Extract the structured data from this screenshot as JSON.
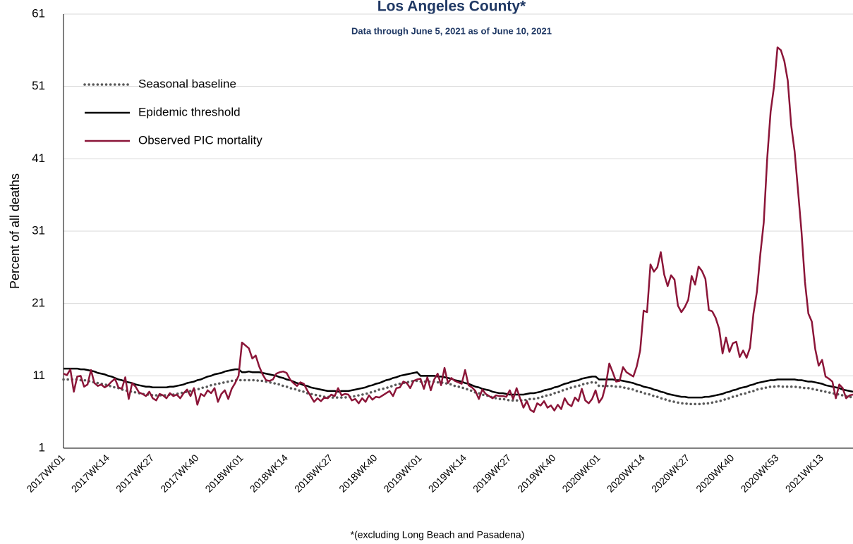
{
  "chart_data": {
    "type": "line",
    "title": "Los Angeles County*",
    "subtitle": "Data through June 5, 2021 as of June 10, 2021",
    "y_label": "Percent of all deaths",
    "footnote": "*(excluding Long Beach and Pasadena)",
    "ylim": [
      1,
      61
    ],
    "yticks": [
      1,
      11,
      21,
      31,
      41,
      51,
      61
    ],
    "grid": true,
    "categories": [
      "2017WK01",
      null,
      null,
      null,
      null,
      null,
      null,
      null,
      null,
      null,
      null,
      null,
      null,
      "2017WK14",
      null,
      null,
      null,
      null,
      null,
      null,
      null,
      null,
      null,
      null,
      null,
      null,
      "2017WK27",
      null,
      null,
      null,
      null,
      null,
      null,
      null,
      null,
      null,
      null,
      null,
      null,
      "2017WK40",
      null,
      null,
      null,
      null,
      null,
      null,
      null,
      null,
      null,
      null,
      null,
      null,
      "2018WK01",
      null,
      null,
      null,
      null,
      null,
      null,
      null,
      null,
      null,
      null,
      null,
      null,
      "2018WK14",
      null,
      null,
      null,
      null,
      null,
      null,
      null,
      null,
      null,
      null,
      null,
      null,
      "2018WK27",
      null,
      null,
      null,
      null,
      null,
      null,
      null,
      null,
      null,
      null,
      null,
      null,
      "2018WK40",
      null,
      null,
      null,
      null,
      null,
      null,
      null,
      null,
      null,
      null,
      null,
      null,
      "2019WK01",
      null,
      null,
      null,
      null,
      null,
      null,
      null,
      null,
      null,
      null,
      null,
      null,
      "2019WK14",
      null,
      null,
      null,
      null,
      null,
      null,
      null,
      null,
      null,
      null,
      null,
      null,
      "2019WK27",
      null,
      null,
      null,
      null,
      null,
      null,
      null,
      null,
      null,
      null,
      null,
      null,
      "2019WK40",
      null,
      null,
      null,
      null,
      null,
      null,
      null,
      null,
      null,
      null,
      null,
      null,
      "2020WK01",
      null,
      null,
      null,
      null,
      null,
      null,
      null,
      null,
      null,
      null,
      null,
      null,
      "2020WK14",
      null,
      null,
      null,
      null,
      null,
      null,
      null,
      null,
      null,
      null,
      null,
      null,
      "2020WK27",
      null,
      null,
      null,
      null,
      null,
      null,
      null,
      null,
      null,
      null,
      null,
      null,
      "2020WK40",
      null,
      null,
      null,
      null,
      null,
      null,
      null,
      null,
      null,
      null,
      null,
      null,
      "2020WK53",
      null,
      null,
      null,
      null,
      null,
      null,
      null,
      null,
      null,
      null,
      null,
      null,
      "2021WK13",
      null,
      null,
      null,
      null,
      null,
      null,
      null,
      null,
      null
    ],
    "series": [
      {
        "name": "Seasonal baseline",
        "color": "#595959",
        "style": "dotted",
        "values": [
          10.5,
          10.5,
          10.5,
          10.5,
          10.5,
          10.4,
          10.4,
          10.3,
          10.2,
          10.1,
          10.0,
          9.9,
          9.8,
          9.7,
          9.5,
          9.4,
          9.3,
          9.1,
          9.0,
          8.9,
          8.8,
          8.7,
          8.6,
          8.5,
          8.4,
          8.4,
          8.3,
          8.3,
          8.3,
          8.3,
          8.3,
          8.4,
          8.4,
          8.5,
          8.6,
          8.7,
          8.8,
          8.9,
          9.0,
          9.1,
          9.3,
          9.4,
          9.5,
          9.7,
          9.8,
          9.9,
          10.0,
          10.1,
          10.2,
          10.3,
          10.4,
          10.4,
          10.4,
          10.4,
          10.4,
          10.4,
          10.4,
          10.3,
          10.3,
          10.2,
          10.1,
          10.0,
          9.9,
          9.8,
          9.6,
          9.5,
          9.3,
          9.2,
          9.1,
          8.9,
          8.8,
          8.6,
          8.5,
          8.4,
          8.3,
          8.2,
          8.1,
          8.1,
          8.0,
          8.0,
          8.0,
          8.0,
          8.0,
          8.1,
          8.1,
          8.2,
          8.3,
          8.4,
          8.5,
          8.6,
          8.8,
          8.9,
          9.1,
          9.2,
          9.3,
          9.5,
          9.6,
          9.8,
          9.9,
          10.0,
          10.1,
          10.2,
          10.3,
          10.3,
          10.2,
          10.2,
          10.2,
          10.2,
          10.2,
          10.1,
          10.1,
          10.0,
          9.9,
          9.8,
          9.6,
          9.5,
          9.4,
          9.2,
          9.1,
          8.9,
          8.7,
          8.6,
          8.4,
          8.3,
          8.2,
          8.0,
          7.9,
          7.8,
          7.8,
          7.7,
          7.6,
          7.6,
          7.6,
          7.6,
          7.6,
          7.7,
          7.8,
          7.8,
          7.9,
          8.0,
          8.2,
          8.3,
          8.4,
          8.6,
          8.7,
          8.9,
          9.1,
          9.2,
          9.4,
          9.5,
          9.6,
          9.8,
          9.9,
          10.0,
          10.1,
          10.1,
          9.6,
          9.6,
          9.6,
          9.6,
          9.6,
          9.5,
          9.5,
          9.4,
          9.3,
          9.2,
          9.1,
          8.9,
          8.8,
          8.6,
          8.5,
          8.4,
          8.2,
          8.1,
          7.9,
          7.8,
          7.6,
          7.5,
          7.4,
          7.3,
          7.2,
          7.2,
          7.1,
          7.1,
          7.1,
          7.1,
          7.1,
          7.2,
          7.2,
          7.3,
          7.4,
          7.5,
          7.6,
          7.8,
          7.9,
          8.1,
          8.2,
          8.4,
          8.5,
          8.6,
          8.8,
          8.9,
          9.1,
          9.2,
          9.3,
          9.4,
          9.5,
          9.5,
          9.6,
          9.5,
          9.5,
          9.5,
          9.5,
          9.5,
          9.4,
          9.4,
          9.3,
          9.3,
          9.2,
          9.1,
          9.0,
          8.9,
          8.8,
          8.7,
          8.6,
          8.5,
          8.4,
          8.3,
          8.2,
          8.1,
          8.0
        ]
      },
      {
        "name": "Epidemic threshold",
        "color": "#000000",
        "style": "solid",
        "values": [
          12.0,
          12.0,
          12.0,
          12.0,
          12.0,
          11.9,
          11.9,
          11.8,
          11.7,
          11.6,
          11.4,
          11.3,
          11.2,
          11.0,
          10.9,
          10.7,
          10.5,
          10.4,
          10.2,
          10.1,
          10.0,
          9.8,
          9.7,
          9.6,
          9.5,
          9.5,
          9.4,
          9.4,
          9.4,
          9.4,
          9.4,
          9.5,
          9.5,
          9.6,
          9.7,
          9.8,
          10.0,
          10.1,
          10.2,
          10.4,
          10.5,
          10.7,
          10.9,
          11.0,
          11.2,
          11.3,
          11.4,
          11.6,
          11.7,
          11.8,
          11.9,
          11.9,
          11.5,
          11.5,
          11.6,
          11.5,
          11.5,
          11.5,
          11.4,
          11.3,
          11.2,
          11.1,
          11.0,
          10.8,
          10.7,
          10.5,
          10.4,
          10.2,
          10.0,
          9.9,
          9.7,
          9.6,
          9.4,
          9.3,
          9.2,
          9.1,
          9.0,
          8.9,
          8.9,
          8.9,
          8.8,
          8.9,
          8.9,
          8.9,
          9.0,
          9.1,
          9.2,
          9.3,
          9.4,
          9.6,
          9.7,
          9.9,
          10.0,
          10.2,
          10.4,
          10.5,
          10.7,
          10.8,
          11.0,
          11.1,
          11.2,
          11.3,
          11.4,
          11.5,
          11.0,
          11.0,
          11.0,
          11.0,
          11.0,
          10.9,
          10.9,
          10.8,
          10.7,
          10.6,
          10.4,
          10.3,
          10.2,
          10.0,
          9.9,
          9.7,
          9.5,
          9.4,
          9.2,
          9.1,
          9.0,
          8.8,
          8.7,
          8.6,
          8.6,
          8.5,
          8.4,
          8.4,
          8.4,
          8.4,
          8.4,
          8.5,
          8.6,
          8.6,
          8.7,
          8.8,
          9.0,
          9.1,
          9.2,
          9.4,
          9.5,
          9.7,
          9.9,
          10.0,
          10.2,
          10.3,
          10.4,
          10.6,
          10.7,
          10.8,
          10.9,
          10.9,
          10.5,
          10.5,
          10.5,
          10.5,
          10.5,
          10.4,
          10.4,
          10.3,
          10.2,
          10.1,
          10.0,
          9.8,
          9.7,
          9.5,
          9.4,
          9.3,
          9.1,
          9.0,
          8.8,
          8.7,
          8.5,
          8.4,
          8.3,
          8.2,
          8.1,
          8.1,
          8.0,
          8.0,
          8.0,
          8.0,
          8.0,
          8.1,
          8.1,
          8.2,
          8.3,
          8.4,
          8.5,
          8.7,
          8.8,
          9.0,
          9.1,
          9.3,
          9.4,
          9.5,
          9.7,
          9.8,
          10.0,
          10.1,
          10.2,
          10.3,
          10.4,
          10.4,
          10.5,
          10.5,
          10.5,
          10.5,
          10.5,
          10.5,
          10.4,
          10.4,
          10.3,
          10.2,
          10.2,
          10.1,
          10.0,
          9.9,
          9.7,
          9.6,
          9.5,
          9.4,
          9.3,
          9.1,
          9.0,
          8.9,
          8.8
        ]
      },
      {
        "name": "Observed PIC mortality",
        "color": "#8b1538",
        "style": "solid",
        "values": [
          11.3,
          11.1,
          11.9,
          8.8,
          10.9,
          11.0,
          9.5,
          9.8,
          11.8,
          10.0,
          9.6,
          9.8,
          9.4,
          9.7,
          10.2,
          10.6,
          9.4,
          9.2,
          10.8,
          7.8,
          10.0,
          9.5,
          8.7,
          8.5,
          8.2,
          8.8,
          7.9,
          7.6,
          8.5,
          8.3,
          7.9,
          8.6,
          8.2,
          8.4,
          7.9,
          8.6,
          9.1,
          8.2,
          9.3,
          7.0,
          8.5,
          8.2,
          9.0,
          8.6,
          9.3,
          7.4,
          8.5,
          9.0,
          7.8,
          9.2,
          10.0,
          11.0,
          15.6,
          15.2,
          14.8,
          13.4,
          13.8,
          12.3,
          11.2,
          10.4,
          10.3,
          10.5,
          11.3,
          11.5,
          11.6,
          11.4,
          10.5,
          10.0,
          9.6,
          10.1,
          9.9,
          9.0,
          8.2,
          7.4,
          7.9,
          7.5,
          8.0,
          7.9,
          8.4,
          8.2,
          9.3,
          8.3,
          8.5,
          8.4,
          7.6,
          7.8,
          7.2,
          7.9,
          7.4,
          8.3,
          7.7,
          8.1,
          8.0,
          8.3,
          8.6,
          8.9,
          8.2,
          9.3,
          9.4,
          10.2,
          10.0,
          9.3,
          10.3,
          10.5,
          10.6,
          9.2,
          10.8,
          9.0,
          10.5,
          11.3,
          9.7,
          12.1,
          10.0,
          10.7,
          10.3,
          10.1,
          9.9,
          11.8,
          9.7,
          9.4,
          8.9,
          7.8,
          9.1,
          8.5,
          8.2,
          7.9,
          8.3,
          8.2,
          8.2,
          8.1,
          9.0,
          7.8,
          9.3,
          7.9,
          6.6,
          7.5,
          6.3,
          6.0,
          7.2,
          6.9,
          7.5,
          6.6,
          6.9,
          6.2,
          7.0,
          6.4,
          7.9,
          7.1,
          6.8,
          8.0,
          7.5,
          9.2,
          7.6,
          7.2,
          7.8,
          9.0,
          7.3,
          8.0,
          9.8,
          12.7,
          11.5,
          10.2,
          10.3,
          12.2,
          11.5,
          11.2,
          10.9,
          12.3,
          14.5,
          20.0,
          19.8,
          26.4,
          25.4,
          26.0,
          28.1,
          25.0,
          23.4,
          24.9,
          24.3,
          20.7,
          19.8,
          20.5,
          21.5,
          24.8,
          23.6,
          26.1,
          25.5,
          24.4,
          20.1,
          19.9,
          19.0,
          17.5,
          14.1,
          16.3,
          14.3,
          15.5,
          15.7,
          13.6,
          14.5,
          13.5,
          14.9,
          19.6,
          22.6,
          27.8,
          32.2,
          41.0,
          47.5,
          51.0,
          56.4,
          56.0,
          54.5,
          51.8,
          45.6,
          42.0,
          36.5,
          30.9,
          24.0,
          19.6,
          18.5,
          14.7,
          12.4,
          13.2,
          10.9,
          10.6,
          10.2,
          7.9,
          9.8,
          9.3,
          7.9,
          8.3,
          8.4
        ]
      }
    ]
  }
}
